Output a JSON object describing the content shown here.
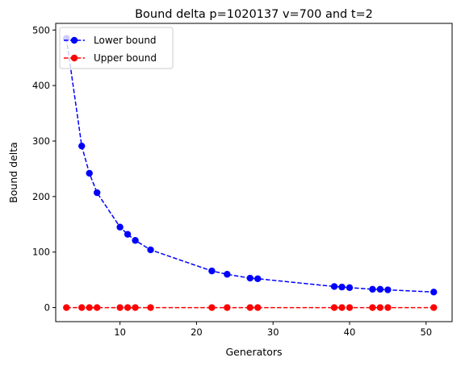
{
  "chart_data": {
    "type": "line",
    "title": "Bound delta p=1020137 v=700 and t=2",
    "xlabel": "Generators",
    "ylabel": "Bound delta",
    "xlim": [
      1.6,
      53.4
    ],
    "ylim": [
      -25.3,
      512
    ],
    "xticks": [
      10,
      20,
      30,
      40,
      50
    ],
    "yticks": [
      0,
      100,
      200,
      300,
      400,
      500
    ],
    "grid": false,
    "legend": "top-left",
    "x": [
      3,
      5,
      6,
      7,
      10,
      11,
      12,
      14,
      22,
      24,
      27,
      28,
      38,
      39,
      40,
      43,
      44,
      45,
      51
    ],
    "series": [
      {
        "name": "Lower bound",
        "color": "#0000ff",
        "linestyle": "dashed",
        "marker": "circle",
        "values": [
          485,
          291,
          242,
          207,
          145,
          132,
          121,
          104,
          66,
          60,
          53,
          52,
          38,
          37,
          36,
          33,
          33,
          32,
          28
        ]
      },
      {
        "name": "Upper bound",
        "color": "#ff0000",
        "linestyle": "dashed",
        "marker": "circle",
        "values": [
          0,
          0,
          0,
          0,
          0,
          0,
          0,
          0,
          0,
          0,
          0,
          0,
          0,
          0,
          0,
          0,
          0,
          0,
          0
        ]
      }
    ]
  }
}
